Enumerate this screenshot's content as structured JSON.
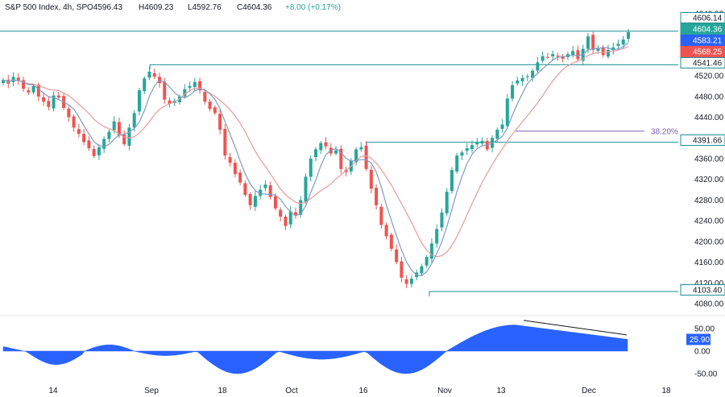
{
  "header": {
    "title": "S&P 500 Index, 4h, SP",
    "open": "O4596.43",
    "high": "H4609.23",
    "low": "L4592.76",
    "close": "C4604.36",
    "change": "+8.00 (+0.17%)"
  },
  "colors": {
    "up": "#26a69a",
    "down": "#ef5350",
    "fast_ma": "#7e9cc4",
    "slow_ma": "#e69b9b",
    "level": "#1e8f93",
    "osc": "#2962ff",
    "fib": "#7a5fb0",
    "last_price": "#26a69a",
    "ma1_label": "#2962ff",
    "ma2_label": "#ef5350"
  },
  "chart_data": [
    {
      "type": "candlestick",
      "title": "S&P 500 Index, 4h, SP",
      "y_axis": {
        "ticks": [
          4080,
          4120,
          4160,
          4200,
          4240,
          4280,
          4320,
          4360,
          4400,
          4440,
          4480,
          4520,
          4560,
          4600,
          4640
        ],
        "range": [
          4060,
          4650
        ]
      },
      "x_axis": {
        "ticks": [
          "14",
          "Sep",
          "18",
          "Oct",
          "16",
          "Nov",
          "13",
          "Dec",
          "18"
        ]
      },
      "price_labels": [
        {
          "value": "4606.14",
          "kind": "level"
        },
        {
          "value": "4604.36",
          "kind": "last"
        },
        {
          "value": "4583.21",
          "kind": "ma1"
        },
        {
          "value": "4568.25",
          "kind": "ma2"
        },
        {
          "value": "4541.46",
          "kind": "level"
        },
        {
          "value": "4391.66",
          "kind": "level"
        },
        {
          "value": "4103.40",
          "kind": "level"
        }
      ],
      "levels": [
        4606.14,
        4541.46,
        4391.66,
        4103.4
      ],
      "fib_label": "38.20%",
      "fib_value": 4413,
      "candles_close": [
        4512,
        4505,
        4518,
        4510,
        4495,
        4488,
        4500,
        4480,
        4470,
        4460,
        4482,
        4478,
        4458,
        4440,
        4420,
        4408,
        4392,
        4380,
        4365,
        4382,
        4398,
        4412,
        4432,
        4405,
        4388,
        4420,
        4448,
        4492,
        4515,
        4528,
        4518,
        4506,
        4474,
        4466,
        4472,
        4480,
        4494,
        4500,
        4508,
        4492,
        4470,
        4456,
        4448,
        4416,
        4366,
        4352,
        4330,
        4314,
        4290,
        4270,
        4288,
        4300,
        4310,
        4286,
        4264,
        4248,
        4230,
        4258,
        4250,
        4280,
        4325,
        4360,
        4378,
        4390,
        4384,
        4370,
        4376,
        4340,
        4334,
        4356,
        4378,
        4382,
        4340,
        4302,
        4270,
        4232,
        4210,
        4186,
        4160,
        4130,
        4118,
        4128,
        4140,
        4152,
        4170,
        4196,
        4224,
        4256,
        4296,
        4338,
        4366,
        4372,
        4380,
        4386,
        4392,
        4394,
        4378,
        4400,
        4416,
        4426,
        4476,
        4502,
        4511,
        4516,
        4519,
        4530,
        4546,
        4558,
        4556,
        4562,
        4557,
        4553,
        4562,
        4568,
        4552,
        4572,
        4596,
        4570,
        4574,
        4560,
        4570,
        4575,
        4582,
        4590,
        4604.36
      ]
    },
    {
      "type": "area",
      "title": "Oscillator",
      "y_axis": {
        "ticks": [
          50,
          0,
          -50
        ],
        "range": [
          -58,
          58
        ]
      },
      "last_value": "25.90"
    }
  ]
}
